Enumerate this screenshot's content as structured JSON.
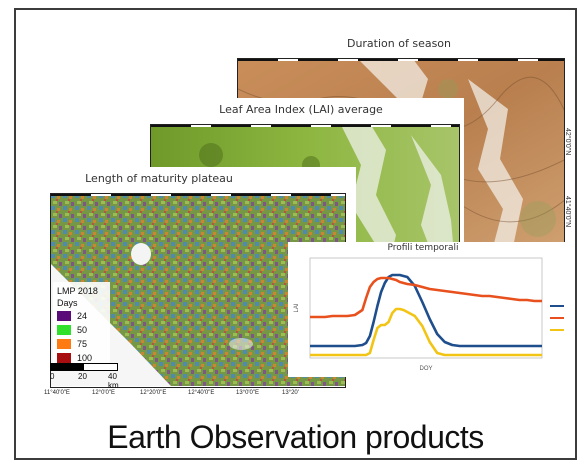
{
  "caption": "Earth Observation products",
  "maps": {
    "duration": {
      "title": "Duration of season",
      "lat_labels": [
        "42°0'0\"N",
        "41°40'0\"N"
      ]
    },
    "lai": {
      "title": "Leaf Area Index (LAI) average"
    },
    "maturity": {
      "title": "Length of maturity plateau",
      "legend": {
        "title": "LMP 2018",
        "subtitle": "Days",
        "items": [
          {
            "label": "24",
            "color": "#5b0a7a"
          },
          {
            "label": "50",
            "color": "#31e02a"
          },
          {
            "label": "75",
            "color": "#ff7a10"
          },
          {
            "label": "100",
            "color": "#a80e10"
          }
        ]
      },
      "scale": {
        "labels": [
          "0",
          "20",
          "40 km"
        ]
      },
      "lon_labels": [
        "11°40'0\"E",
        "12°0'0\"E",
        "12°20'0\"E",
        "12°40'0\"E",
        "13°0'0\"E",
        "13°20'"
      ]
    }
  },
  "chart": {
    "title": "Profili temporali",
    "xlabel": "DOY",
    "ylabel": "LAI",
    "series_colors": [
      "#1f4e8c",
      "#e8511e",
      "#f2c414"
    ]
  },
  "chart_data": {
    "type": "line",
    "title": "Profili temporali",
    "xlabel": "DOY",
    "ylabel": "LAI",
    "x": [
      0,
      8,
      16,
      24,
      32,
      40,
      48,
      56,
      60,
      64,
      68,
      72,
      76,
      80,
      84,
      88,
      92,
      96,
      100,
      104,
      112,
      120,
      128,
      136,
      144,
      152,
      160,
      168,
      176,
      184,
      192,
      200,
      208,
      216,
      224,
      232,
      240,
      248
    ],
    "ylim": [
      0,
      10
    ],
    "series": [
      {
        "color": "#1f4e8c",
        "values": [
          1.2,
          1.2,
          1.2,
          1.2,
          1.2,
          1.2,
          1.2,
          1.3,
          1.5,
          2.2,
          3.6,
          5.2,
          6.6,
          7.5,
          8.1,
          8.3,
          8.3,
          8.3,
          8.2,
          8.1,
          7.2,
          5.6,
          3.9,
          2.4,
          1.6,
          1.3,
          1.2,
          1.2,
          1.2,
          1.2,
          1.2,
          1.2,
          1.2,
          1.2,
          1.2,
          1.2,
          1.2,
          1.2
        ]
      },
      {
        "color": "#e8511e",
        "values": [
          4.1,
          4.1,
          4.1,
          4.2,
          4.2,
          4.2,
          4.3,
          4.8,
          6.0,
          7.1,
          7.6,
          7.9,
          8.0,
          8.0,
          8.0,
          7.9,
          7.8,
          7.6,
          7.5,
          7.4,
          7.3,
          7.1,
          6.9,
          6.8,
          6.7,
          6.6,
          6.5,
          6.4,
          6.3,
          6.2,
          6.2,
          6.1,
          6.0,
          5.9,
          5.8,
          5.8,
          5.7,
          5.7
        ]
      },
      {
        "color": "#f2c414",
        "values": [
          0.3,
          0.3,
          0.3,
          0.3,
          0.3,
          0.3,
          0.3,
          0.3,
          0.3,
          0.5,
          1.8,
          3.0,
          3.3,
          3.3,
          3.6,
          4.5,
          4.9,
          4.9,
          4.8,
          4.6,
          4.2,
          3.2,
          1.6,
          0.5,
          0.3,
          0.3,
          0.3,
          0.3,
          0.3,
          0.3,
          0.3,
          0.3,
          0.3,
          0.3,
          0.3,
          0.3,
          0.3,
          0.3
        ]
      }
    ]
  }
}
